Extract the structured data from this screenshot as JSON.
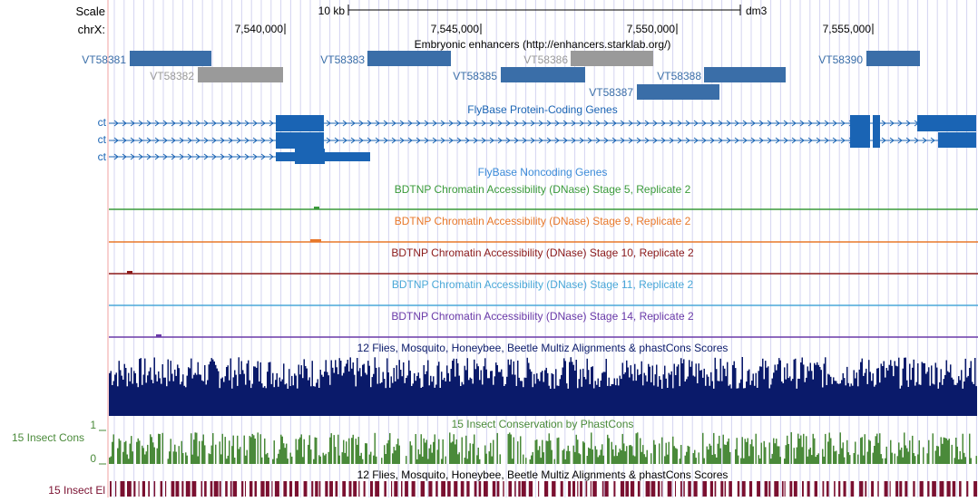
{
  "header": {
    "scale_label": "Scale",
    "scale_value": "10 kb",
    "assembly": "dm3",
    "chrom_label": "chrX:",
    "positions": [
      "7,540,000",
      "7,545,000",
      "7,550,000",
      "7,555,000"
    ]
  },
  "tracks": {
    "enhancers": {
      "title": "Embryonic enhancers (http://enhancers.starklab.org/)",
      "items": [
        {
          "label": "VT58381",
          "kind": "active"
        },
        {
          "label": "VT58382",
          "kind": "inactive"
        },
        {
          "label": "VT58383",
          "kind": "active"
        },
        {
          "label": "VT58386",
          "kind": "inactive"
        },
        {
          "label": "VT58385",
          "kind": "active"
        },
        {
          "label": "VT58388",
          "kind": "active"
        },
        {
          "label": "VT58387",
          "kind": "active"
        },
        {
          "label": "VT58390",
          "kind": "active"
        }
      ]
    },
    "protein_coding": {
      "title": "FlyBase Protein-Coding Genes",
      "gene_labels": [
        "ct",
        "ct",
        "ct"
      ]
    },
    "noncoding": {
      "title": "FlyBase Noncoding Genes"
    },
    "dnase": [
      {
        "title": "BDTNP Chromatin Accessibility (DNase) Stage 5, Replicate 2",
        "color": "#3a9a3a"
      },
      {
        "title": "BDTNP Chromatin Accessibility (DNase) Stage 9, Replicate 2",
        "color": "#e8782a"
      },
      {
        "title": "BDTNP Chromatin Accessibility (DNase) Stage 10, Replicate 2",
        "color": "#8b1a1a"
      },
      {
        "title": "BDTNP Chromatin Accessibility (DNase) Stage 11, Replicate 2",
        "color": "#4aa8d8"
      },
      {
        "title": "BDTNP Chromatin Accessibility (DNase) Stage 14, Replicate 2",
        "color": "#6a3aa8"
      }
    ],
    "multiz": {
      "title": "12 Flies, Mosquito, Honeybee, Beetle Multiz Alignments & phastCons Scores",
      "color": "#0a1a6a"
    },
    "phastcons": {
      "title": "15 Insect Conservation by PhastCons",
      "side_label": "15 Insect Cons",
      "axis_top": "1",
      "axis_bottom": "0",
      "color": "#4a8a3a"
    },
    "elements": {
      "title": "12 Flies, Mosquito, Honeybee, Beetle Multiz Alignments & phastCons Scores",
      "side_label": "15 Insect El",
      "color": "#7a1030"
    }
  },
  "colors": {
    "enhancer_active": "#3a6ea8",
    "enhancer_inactive": "#9a9a9a",
    "gene": "#1a64b4",
    "grid": "#d4d4f0",
    "left_border": "#f0a0a0"
  }
}
